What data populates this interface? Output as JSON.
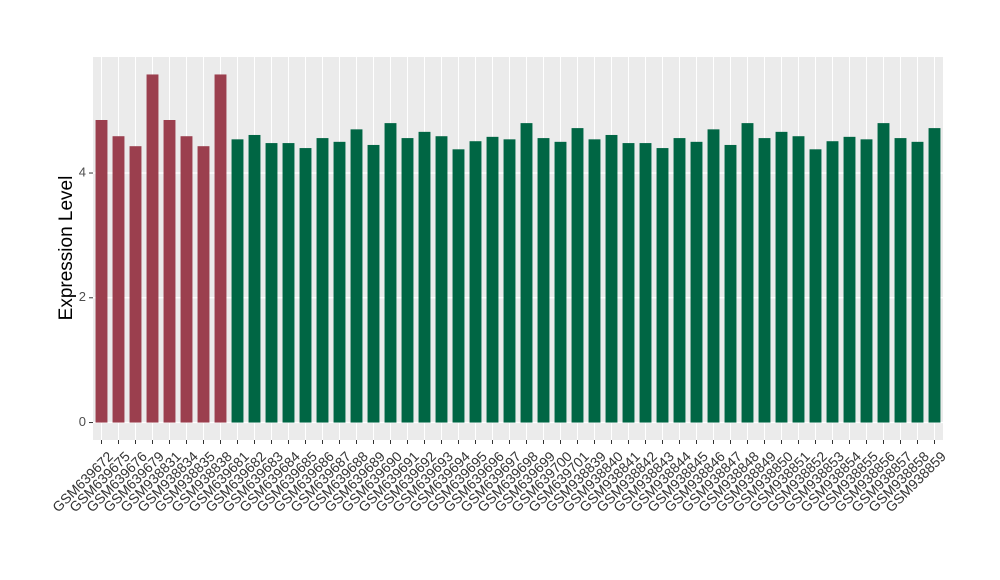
{
  "chart_data": {
    "type": "bar",
    "y_label": "Expression Level",
    "categories": [
      "GSM639672",
      "GSM639675",
      "GSM639676",
      "GSM639679",
      "GSM938831",
      "GSM938834",
      "GSM938835",
      "GSM938838",
      "GSM639681",
      "GSM639682",
      "GSM639683",
      "GSM639684",
      "GSM639685",
      "GSM639686",
      "GSM639687",
      "GSM639688",
      "GSM639689",
      "GSM639690",
      "GSM639691",
      "GSM639692",
      "GSM639693",
      "GSM639694",
      "GSM639695",
      "GSM639696",
      "GSM639697",
      "GSM639698",
      "GSM639699",
      "GSM639700",
      "GSM639701",
      "GSM938839",
      "GSM938840",
      "GSM938841",
      "GSM938842",
      "GSM938843",
      "GSM938844",
      "GSM938845",
      "GSM938846",
      "GSM938847",
      "GSM938848",
      "GSM938849",
      "GSM938850",
      "GSM938851",
      "GSM938852",
      "GSM938853",
      "GSM938854",
      "GSM938855",
      "GSM938856",
      "GSM938857",
      "GSM938858",
      "GSM938859"
    ],
    "values": [
      4.85,
      4.59,
      4.43,
      5.58,
      4.85,
      4.59,
      4.43,
      5.58,
      4.54,
      4.61,
      4.48,
      4.48,
      4.4,
      4.56,
      4.5,
      4.7,
      4.45,
      4.8,
      4.56,
      4.66,
      4.59,
      4.38,
      4.51,
      4.58,
      4.54,
      4.8,
      4.56,
      4.5,
      4.72,
      4.54,
      4.61,
      4.48,
      4.48,
      4.4,
      4.56,
      4.5,
      4.7,
      4.45,
      4.8,
      4.56,
      4.66,
      4.59,
      4.38,
      4.51,
      4.58,
      4.54,
      4.8,
      4.56,
      4.5,
      4.72
    ],
    "colors": [
      "#9b3f4e",
      "#9b3f4e",
      "#9b3f4e",
      "#9b3f4e",
      "#9b3f4e",
      "#9b3f4e",
      "#9b3f4e",
      "#9b3f4e",
      "#006644",
      "#006644",
      "#006644",
      "#006644",
      "#006644",
      "#006644",
      "#006644",
      "#006644",
      "#006644",
      "#006644",
      "#006644",
      "#006644",
      "#006644",
      "#006644",
      "#006644",
      "#006644",
      "#006644",
      "#006644",
      "#006644",
      "#006644",
      "#006644",
      "#006644",
      "#006644",
      "#006644",
      "#006644",
      "#006644",
      "#006644",
      "#006644",
      "#006644",
      "#006644",
      "#006644",
      "#006644",
      "#006644",
      "#006644",
      "#006644",
      "#006644",
      "#006644",
      "#006644",
      "#006644",
      "#006644",
      "#006644",
      "#006644"
    ],
    "ylim": [
      -0.28,
      5.86
    ],
    "yticks": [
      0,
      2,
      4
    ],
    "grid": true
  }
}
